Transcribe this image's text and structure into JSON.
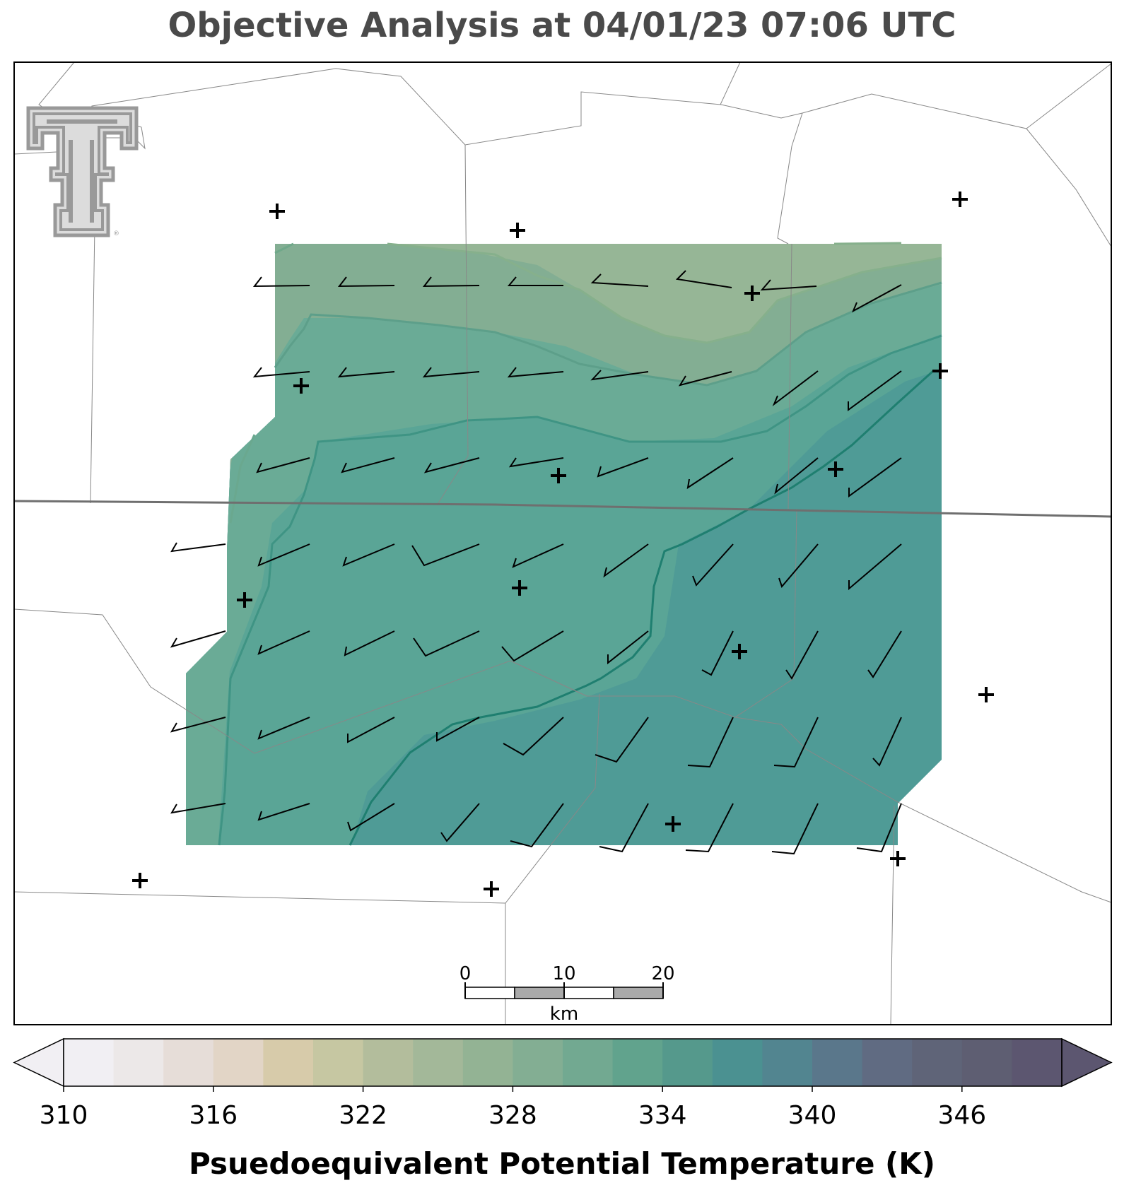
{
  "title": "Objective Analysis at 04/01/23 07:06 UTC",
  "colorbar": {
    "label": "Psuedoequivalent Potential Temperature (K)",
    "min": 310,
    "max": 350,
    "step": 2,
    "tick_labels": [
      "310",
      "316",
      "322",
      "328",
      "334",
      "340",
      "346"
    ],
    "extend": "both",
    "colors": [
      "#f1eff3",
      "#ece8e8",
      "#e6ddd8",
      "#e2d5c6",
      "#d7cbaa",
      "#c6c7a2",
      "#b3bd9c",
      "#a3b899",
      "#93b394",
      "#83ae93",
      "#72a991",
      "#61a38d",
      "#55998c",
      "#4b9191",
      "#528590",
      "#5a778b",
      "#606b82",
      "#5f6478",
      "#5e5e72",
      "#5c5670"
    ],
    "under_color": "#f1eff3",
    "over_color": "#5c5670"
  },
  "scale_bar": {
    "ticks": [
      "0",
      "10",
      "20"
    ],
    "unit": "km"
  },
  "logo": {
    "name": "texas-tech-double-t",
    "color": "#999999"
  },
  "station_marker": "+",
  "colors": {
    "title": "#4a4a4a",
    "border": "#000000",
    "boundaries": "#888888",
    "contours": "#1f7f70"
  }
}
